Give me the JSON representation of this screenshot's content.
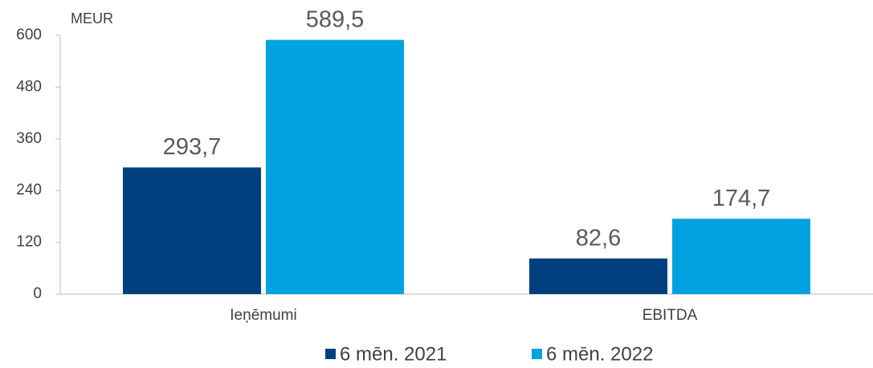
{
  "chart_data": {
    "type": "bar",
    "y_label": "MEUR",
    "categories": [
      "Ieņēmumi",
      "EBITDA"
    ],
    "series": [
      {
        "name": "6 mēn. 2021",
        "color": "#003f7d",
        "values": [
          293.7,
          82.6
        ],
        "value_labels": [
          "293,7",
          "82,6"
        ]
      },
      {
        "name": "6 mēn. 2022",
        "color": "#00a3e0",
        "values": [
          589.5,
          174.7
        ],
        "value_labels": [
          "589,5",
          "174,7"
        ]
      }
    ],
    "ylim": [
      0,
      600
    ],
    "yticks": [
      0,
      120,
      240,
      360,
      480,
      600
    ],
    "grid": false,
    "legend": "bottom"
  }
}
